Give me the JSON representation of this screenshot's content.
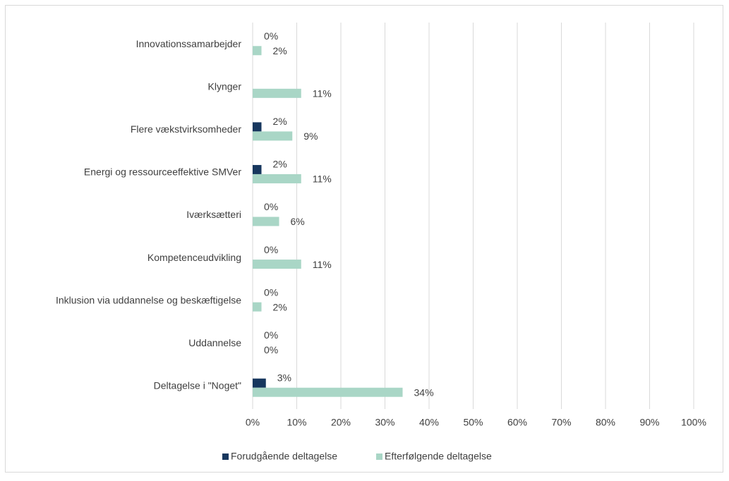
{
  "chart_data": {
    "type": "bar",
    "orientation": "horizontal",
    "categories": [
      "Innovationssamarbejder",
      "Klynger",
      "Flere vækstvirksomheder",
      "Energi og ressourceeffektive SMVer",
      "Iværksætteri",
      "Kompetenceudvikling",
      "Inklusion via uddannelse og beskæftigelse",
      "Uddannelse",
      "Deltagelse i \"Noget\""
    ],
    "series": [
      {
        "name": "Forudgående deltagelse",
        "color": "#17375e",
        "values": [
          0,
          null,
          2,
          2,
          0,
          0,
          0,
          0,
          3
        ],
        "value_labels": [
          "0%",
          null,
          "2%",
          "2%",
          "0%",
          "0%",
          "0%",
          "0%",
          "3%"
        ]
      },
      {
        "name": "Efterfølgende deltagelse",
        "color": "#a9d6c6",
        "values": [
          2,
          11,
          9,
          11,
          6,
          11,
          2,
          0,
          34
        ],
        "value_labels": [
          "2%",
          "11%",
          "9%",
          "11%",
          "6%",
          "11%",
          "2%",
          "0%",
          "34%"
        ]
      }
    ],
    "xlim": [
      0,
      100
    ],
    "xticks": [
      {
        "value": 0,
        "label": "0%"
      },
      {
        "value": 10,
        "label": "10%"
      },
      {
        "value": 20,
        "label": "20%"
      },
      {
        "value": 30,
        "label": "30%"
      },
      {
        "value": 40,
        "label": "40%"
      },
      {
        "value": 50,
        "label": "50%"
      },
      {
        "value": 60,
        "label": "60%"
      },
      {
        "value": 70,
        "label": "70%"
      },
      {
        "value": 80,
        "label": "80%"
      },
      {
        "value": 90,
        "label": "90%"
      },
      {
        "value": 100,
        "label": "100%"
      }
    ],
    "grid": true,
    "legend": "bottom"
  }
}
